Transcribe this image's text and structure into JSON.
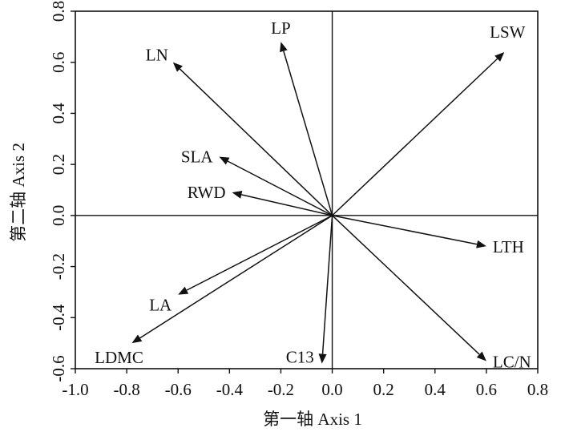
{
  "chart_data": {
    "type": "scatter",
    "subtype": "biplot-vectors",
    "xlabel": "第一轴  Axis 1",
    "ylabel": "第二轴  Axis 2",
    "xlim": [
      -1.0,
      0.8
    ],
    "ylim": [
      -0.6,
      0.8
    ],
    "xticks": [
      "-1.0",
      "-0.8",
      "-0.6",
      "-0.4",
      "-0.2",
      "0.0",
      "0.2",
      "0.4",
      "0.6",
      "0.8"
    ],
    "yticks": [
      "0.8",
      "0.6",
      "0.4",
      "0.2",
      "0.0",
      "-0.2",
      "-0.4",
      "-0.6"
    ],
    "grid": false,
    "reference_lines": [
      0,
      0
    ],
    "vectors": [
      {
        "name": "LP",
        "x": -0.2,
        "y": 0.68
      },
      {
        "name": "LN",
        "x": -0.62,
        "y": 0.6
      },
      {
        "name": "LSW",
        "x": 0.67,
        "y": 0.64
      },
      {
        "name": "SLA",
        "x": -0.44,
        "y": 0.23
      },
      {
        "name": "RWD",
        "x": -0.39,
        "y": 0.09
      },
      {
        "name": "LTH",
        "x": 0.6,
        "y": -0.12
      },
      {
        "name": "LA",
        "x": -0.6,
        "y": -0.31
      },
      {
        "name": "LDMC",
        "x": -0.78,
        "y": -0.5
      },
      {
        "name": "C13",
        "x": -0.04,
        "y": -0.58
      },
      {
        "name": "LC/N",
        "x": 0.6,
        "y": -0.57
      }
    ]
  }
}
